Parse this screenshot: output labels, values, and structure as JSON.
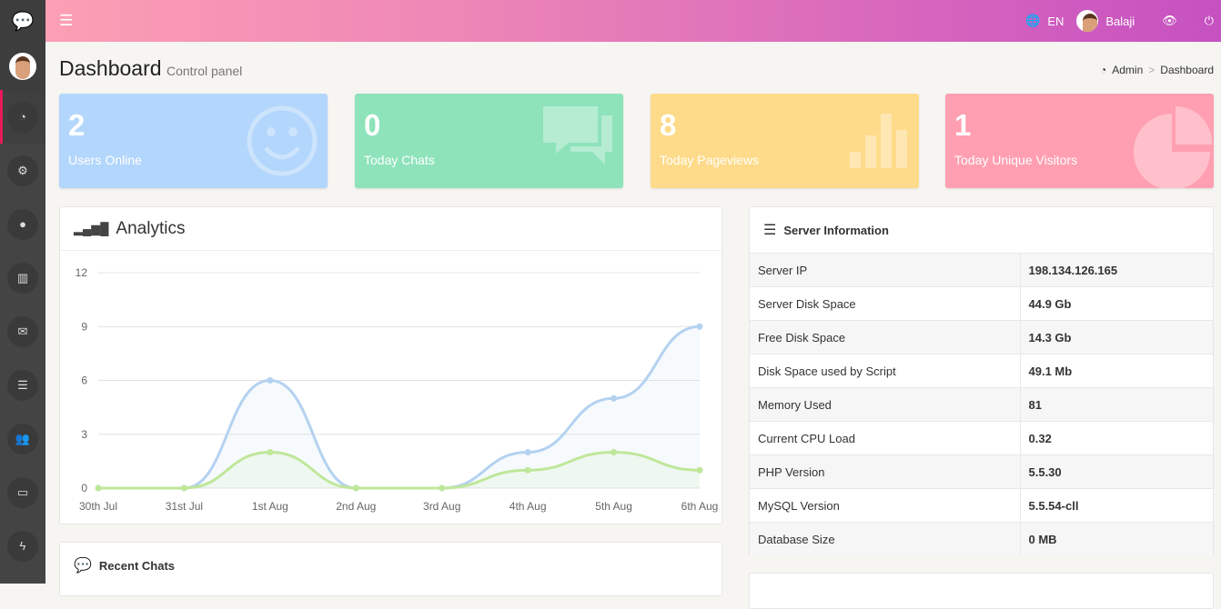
{
  "header": {
    "language": "EN",
    "user": "Balaji"
  },
  "page": {
    "title": "Dashboard",
    "subtitle": "Control panel",
    "breadcrumb": [
      "Admin",
      "Dashboard"
    ]
  },
  "cards": [
    {
      "value": "2",
      "label": "Users Online",
      "color": "#b3d6fc"
    },
    {
      "value": "0",
      "label": "Today Chats",
      "color": "#8ee3ba"
    },
    {
      "value": "8",
      "label": "Today Pageviews",
      "color": "#fedb8a"
    },
    {
      "value": "1",
      "label": "Today Unique Visitors",
      "color": "#ff9fb1"
    }
  ],
  "analytics": {
    "title": "Analytics"
  },
  "chart_data": {
    "type": "area",
    "title": "Analytics",
    "categories": [
      "30th Jul",
      "31st Jul",
      "1st Aug",
      "2nd Aug",
      "3rd Aug",
      "4th Aug",
      "5th Aug",
      "6th Aug"
    ],
    "ylim": [
      0,
      12
    ],
    "yticks": [
      0,
      3,
      6,
      9,
      12
    ],
    "series": [
      {
        "name": "series-1",
        "color": "#b4d2f0",
        "values": [
          0,
          0,
          6,
          0,
          0,
          2,
          5,
          9
        ]
      },
      {
        "name": "series-2",
        "color": "#bfe79a",
        "values": [
          0,
          0,
          2,
          0,
          0,
          1,
          2,
          1
        ]
      }
    ]
  },
  "server": {
    "title": "Server Information",
    "rows": [
      [
        "Server IP",
        "198.134.126.165"
      ],
      [
        "Server Disk Space",
        "44.9 Gb"
      ],
      [
        "Free Disk Space",
        "14.3 Gb"
      ],
      [
        "Disk Space used by Script",
        "49.1 Mb"
      ],
      [
        "Memory Used",
        "81"
      ],
      [
        "Current CPU Load",
        "0.32"
      ],
      [
        "PHP Version",
        "5.5.30"
      ],
      [
        "MySQL Version",
        "5.5.54-cll"
      ],
      [
        "Database Size",
        "0 MB"
      ]
    ]
  },
  "recent": {
    "title": "Recent Chats"
  }
}
